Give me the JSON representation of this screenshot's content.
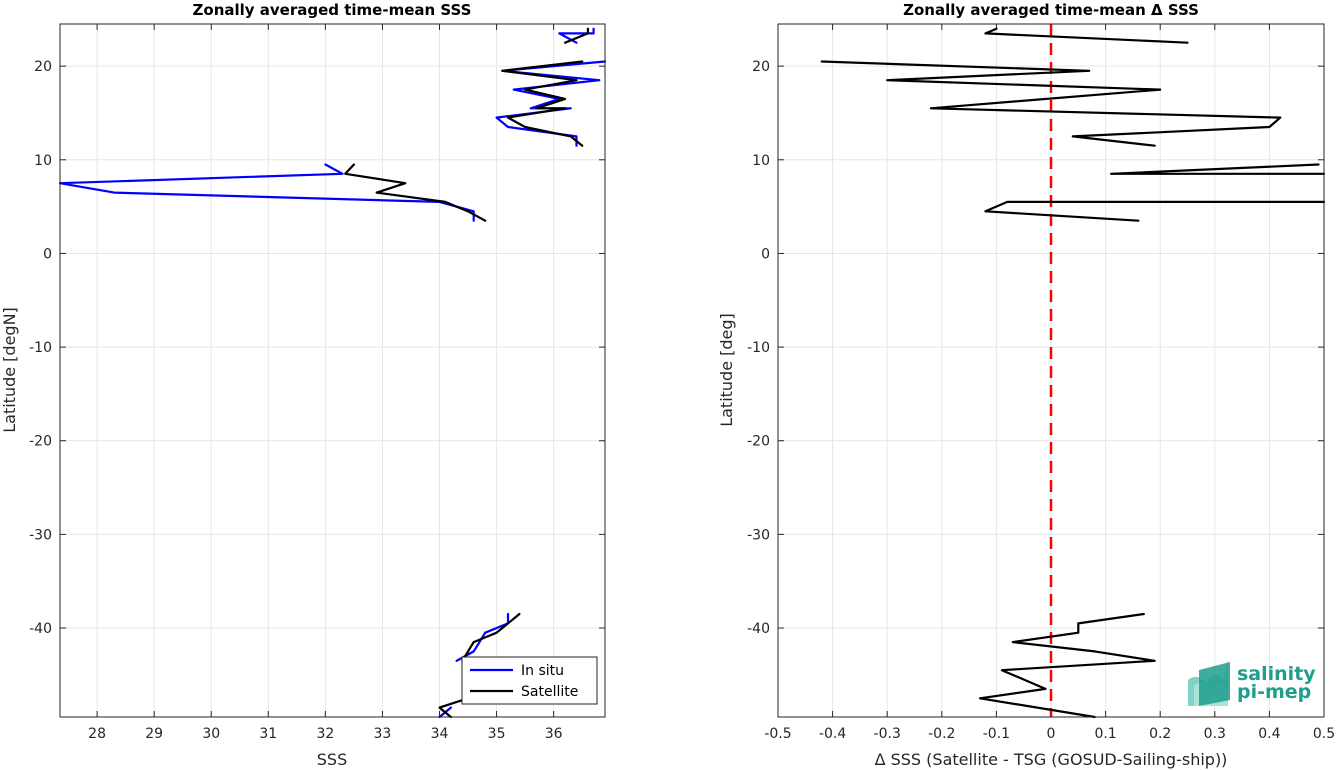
{
  "chart_data": [
    {
      "type": "line",
      "title": "Zonally averaged time-mean SSS",
      "xlabel": "SSS",
      "ylabel": "Latitude [degN]",
      "xlim": [
        27.35,
        36.9
      ],
      "ylim": [
        -49.5,
        24.5
      ],
      "xticks": [
        28,
        29,
        30,
        31,
        32,
        33,
        34,
        35,
        36
      ],
      "yticks": [
        20,
        10,
        0,
        -10,
        -20,
        -30,
        -40
      ],
      "grid": true,
      "legend_position": "bottom-right",
      "series": [
        {
          "name": "In situ",
          "color": "#0000ff",
          "segments": [
            [
              [
                36.7,
                24.0
              ],
              [
                36.7,
                23.5
              ],
              [
                36.1,
                23.5
              ],
              [
                36.4,
                22.5
              ]
            ],
            [
              [
                36.9,
                20.5
              ],
              [
                35.1,
                19.5
              ],
              [
                36.8,
                18.5
              ],
              [
                35.3,
                17.5
              ],
              [
                36.1,
                16.5
              ],
              [
                35.6,
                15.5
              ],
              [
                36.3,
                15.5
              ],
              [
                35.0,
                14.5
              ],
              [
                35.2,
                13.5
              ],
              [
                36.4,
                12.5
              ],
              [
                36.4,
                11.5
              ]
            ],
            [
              [
                32.0,
                9.5
              ],
              [
                32.3,
                8.5
              ],
              [
                27.35,
                7.5
              ],
              [
                28.3,
                6.5
              ],
              [
                34.0,
                5.5
              ],
              [
                34.6,
                4.5
              ],
              [
                34.6,
                3.5
              ]
            ],
            [
              [
                35.2,
                -38.5
              ],
              [
                35.2,
                -39.5
              ],
              [
                34.8,
                -40.5
              ],
              [
                34.7,
                -41.5
              ],
              [
                34.6,
                -42.5
              ],
              [
                34.3,
                -43.5
              ]
            ],
            [
              [
                34.2,
                -48.5
              ],
              [
                34.0,
                -49.5
              ]
            ]
          ]
        },
        {
          "name": "Satellite",
          "color": "#000000",
          "segments": [
            [
              [
                36.6,
                24.0
              ],
              [
                36.6,
                23.5
              ],
              [
                36.2,
                22.5
              ]
            ],
            [
              [
                36.5,
                20.5
              ],
              [
                35.1,
                19.5
              ],
              [
                36.4,
                18.5
              ],
              [
                35.5,
                17.5
              ],
              [
                36.2,
                16.5
              ],
              [
                35.7,
                15.5
              ],
              [
                36.2,
                15.5
              ],
              [
                35.2,
                14.5
              ],
              [
                35.5,
                13.5
              ],
              [
                36.3,
                12.5
              ],
              [
                36.5,
                11.5
              ]
            ],
            [
              [
                32.5,
                9.5
              ],
              [
                32.35,
                8.5
              ],
              [
                33.4,
                7.5
              ],
              [
                32.9,
                6.5
              ],
              [
                34.1,
                5.5
              ],
              [
                34.5,
                4.5
              ],
              [
                34.8,
                3.5
              ]
            ],
            [
              [
                35.4,
                -38.5
              ],
              [
                35.2,
                -39.5
              ],
              [
                35.0,
                -40.5
              ],
              [
                34.6,
                -41.5
              ],
              [
                34.5,
                -42.5
              ],
              [
                34.4,
                -43.5
              ]
            ],
            [
              [
                34.5,
                -47.5
              ],
              [
                34.0,
                -48.5
              ],
              [
                34.2,
                -49.5
              ]
            ]
          ]
        }
      ]
    },
    {
      "type": "line",
      "title": "Zonally averaged time-mean Δ SSS",
      "xlabel": "Δ SSS (Satellite - TSG (GOSUD-Sailing-ship))",
      "ylabel": "Latitude [deg]",
      "xlim": [
        -0.5,
        0.5
      ],
      "ylim": [
        -49.5,
        24.5
      ],
      "xticks": [
        -0.5,
        -0.4,
        -0.3,
        -0.2,
        -0.1,
        0,
        0.1,
        0.2,
        0.3,
        0.4,
        0.5
      ],
      "xtick_labels": [
        "-0.5",
        "-0.4",
        "-0.3",
        "-0.2",
        "-0.1",
        "0",
        "0.1",
        "0.2",
        "0.3",
        "0.4",
        "0.5"
      ],
      "yticks": [
        20,
        10,
        0,
        -10,
        -20,
        -30,
        -40
      ],
      "grid": true,
      "reference_line": {
        "x": 0,
        "color": "#ff0000",
        "style": "dashed"
      },
      "series": [
        {
          "color": "#000000",
          "segments": [
            [
              [
                -0.1,
                24.0
              ],
              [
                -0.12,
                23.5
              ],
              [
                0.25,
                22.5
              ]
            ],
            [
              [
                -0.42,
                20.5
              ],
              [
                0.07,
                19.5
              ],
              [
                -0.3,
                18.5
              ],
              [
                0.2,
                17.5
              ],
              [
                -0.22,
                15.5
              ],
              [
                0.42,
                14.5
              ],
              [
                0.4,
                13.5
              ],
              [
                0.04,
                12.5
              ],
              [
                0.19,
                11.5
              ]
            ],
            [
              [
                0.49,
                9.5
              ],
              [
                0.11,
                8.5
              ],
              [
                0.5,
                8.5
              ]
            ],
            [
              [
                0.5,
                5.5
              ],
              [
                -0.08,
                5.5
              ],
              [
                -0.12,
                4.5
              ],
              [
                0.16,
                3.5
              ]
            ],
            [
              [
                0.17,
                -38.5
              ],
              [
                0.05,
                -39.5
              ],
              [
                0.05,
                -40.5
              ],
              [
                -0.07,
                -41.5
              ],
              [
                0.08,
                -42.5
              ],
              [
                0.19,
                -43.5
              ],
              [
                -0.09,
                -44.5
              ],
              [
                -0.05,
                -45.5
              ],
              [
                -0.01,
                -46.5
              ],
              [
                -0.13,
                -47.5
              ],
              [
                0.08,
                -49.5
              ]
            ]
          ]
        }
      ]
    }
  ],
  "logo": {
    "name": "salinity-pi-mep-logo",
    "line1": "salinity",
    "line2": "pi-mep",
    "color": "#1f9e8c"
  }
}
